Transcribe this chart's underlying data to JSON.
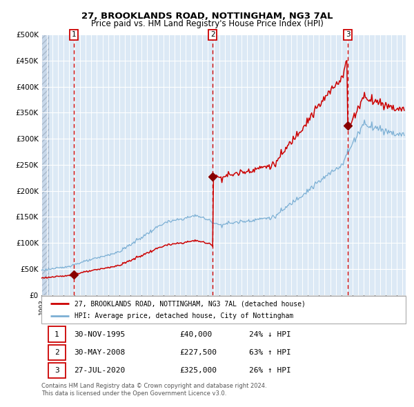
{
  "title": "27, BROOKLANDS ROAD, NOTTINGHAM, NG3 7AL",
  "subtitle": "Price paid vs. HM Land Registry's House Price Index (HPI)",
  "background_color": "#dce9f5",
  "hatch_color": "#b8cfe8",
  "grid_color": "#ffffff",
  "red_line_color": "#cc0000",
  "blue_line_color": "#7bafd4",
  "sale_marker_color": "#880000",
  "dashed_line_color": "#cc0000",
  "ylim": [
    0,
    500000
  ],
  "yticks": [
    0,
    50000,
    100000,
    150000,
    200000,
    250000,
    300000,
    350000,
    400000,
    450000,
    500000
  ],
  "sale_dates": [
    1995.917,
    2008.417,
    2020.583
  ],
  "sale_prices": [
    40000,
    227500,
    325000
  ],
  "sale_labels": [
    "1",
    "2",
    "3"
  ],
  "legend_entries": [
    {
      "label": "27, BROOKLANDS ROAD, NOTTINGHAM, NG3 7AL (detached house)",
      "color": "#cc0000"
    },
    {
      "label": "HPI: Average price, detached house, City of Nottingham",
      "color": "#7bafd4"
    }
  ],
  "table_rows": [
    {
      "num": "1",
      "date": "30-NOV-1995",
      "price": "£40,000",
      "change": "24% ↓ HPI"
    },
    {
      "num": "2",
      "date": "30-MAY-2008",
      "price": "£227,500",
      "change": "63% ↑ HPI"
    },
    {
      "num": "3",
      "date": "27-JUL-2020",
      "price": "£325,000",
      "change": "26% ↑ HPI"
    }
  ],
  "footnote": "Contains HM Land Registry data © Crown copyright and database right 2024.\nThis data is licensed under the Open Government Licence v3.0.",
  "xmin": 1993.0,
  "xmax": 2025.8
}
